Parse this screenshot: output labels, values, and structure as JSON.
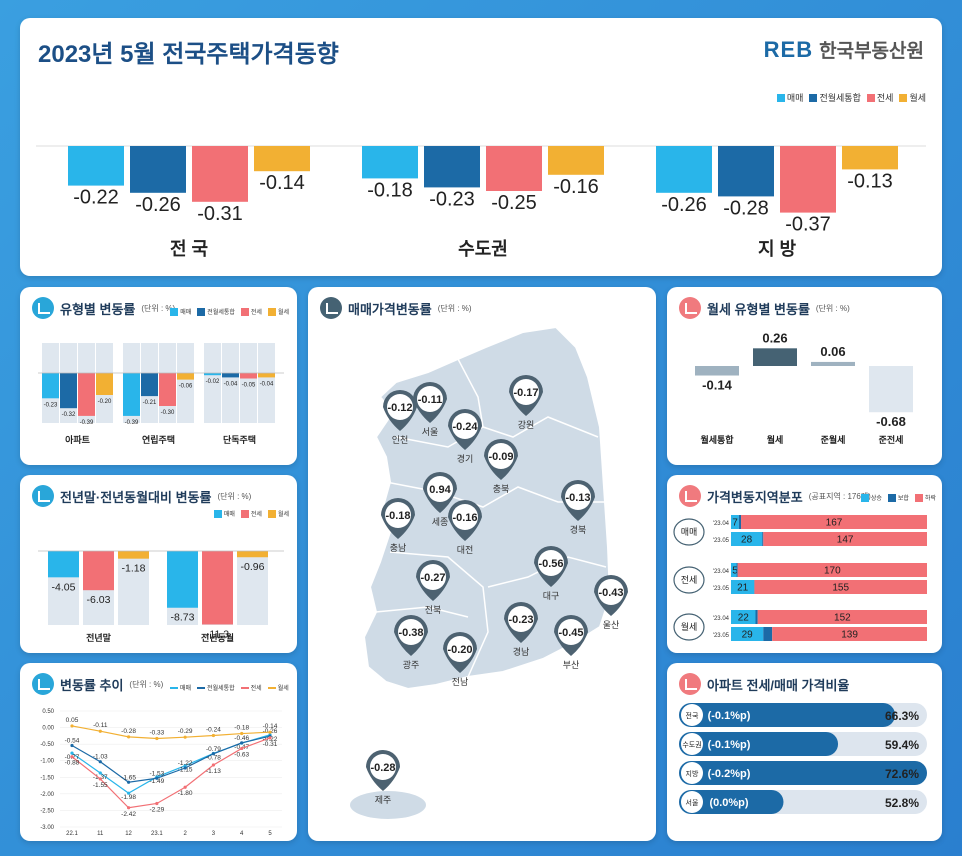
{
  "colors": {
    "sale": "#29b5ea",
    "combined": "#1c6aa6",
    "jeonse": "#f27075",
    "wolse": "#f2b033",
    "navy": "#1f3b5a",
    "gray": "#dfe7ef",
    "mapfill": "#cfdbe6",
    "pin": "#4d6271"
  },
  "header": {
    "title": "2023년 5월 전국주택가격동향",
    "brand_logo": "REB",
    "brand_name": "한국부동산원"
  },
  "legend4": [
    "매매",
    "전월세통합",
    "전세",
    "월세"
  ],
  "legend3": [
    "매매",
    "전세",
    "월세"
  ],
  "top": {
    "groups": [
      {
        "name": "전 국",
        "values": [
          -0.22,
          -0.26,
          -0.31,
          -0.14
        ],
        "labels": [
          "-0.22",
          "-0.26",
          "-0.31",
          "-0.14"
        ]
      },
      {
        "name": "수도권",
        "values": [
          -0.18,
          -0.23,
          -0.25,
          -0.16
        ],
        "labels": [
          "-0.18",
          "-0.23",
          "-0.25",
          "-0.16"
        ]
      },
      {
        "name": "지 방",
        "values": [
          -0.26,
          -0.28,
          -0.37,
          -0.13
        ],
        "labels": [
          "-0.26",
          "-0.28",
          "-0.37",
          "-0.13"
        ]
      }
    ]
  },
  "type_card": {
    "title": "유형별 변동률",
    "unit": "(단위 : %)",
    "groups": [
      {
        "name": "아파트",
        "values": [
          -0.23,
          -0.32,
          -0.39,
          -0.2
        ],
        "labels": [
          "-0.23",
          "-0.32",
          "-0.39",
          "-0.20"
        ]
      },
      {
        "name": "연립주택",
        "values": [
          -0.39,
          -0.21,
          -0.3,
          -0.06
        ],
        "labels": [
          "-0.39",
          "-0.21",
          "-0.30",
          "-0.06"
        ]
      },
      {
        "name": "단독주택",
        "values": [
          -0.02,
          -0.04,
          -0.05,
          -0.04
        ],
        "labels": [
          "-0.02",
          "-0.04",
          "-0.05",
          "-0.04"
        ]
      }
    ]
  },
  "yoy_card": {
    "title": "전년말·전년동월대비 변동률",
    "unit": "(단위 : %)",
    "groups": [
      {
        "name": "전년말",
        "values": [
          -4.05,
          -6.03,
          -1.18
        ],
        "labels": [
          "-4.05",
          "-6.03",
          "-1.18"
        ]
      },
      {
        "name": "전년동월",
        "values": [
          -8.73,
          -11.3,
          -0.96
        ],
        "labels": [
          "-8.73",
          "-11.3",
          "-0.96"
        ]
      }
    ]
  },
  "trend_card": {
    "title": "변동률 추이",
    "unit": "(단위 : %)",
    "x": [
      "22.1",
      "11",
      "12",
      "23.1",
      "2",
      "3",
      "4",
      "5"
    ],
    "yticks": [
      "0.50",
      "0.00",
      "-0.50",
      "-1.00",
      "-1.50",
      "-2.00",
      "-2.50",
      "-3.00"
    ],
    "ylim": [
      -3,
      0.5
    ],
    "series": [
      {
        "name": "매매",
        "values": [
          -0.77,
          -1.37,
          -1.98,
          -1.49,
          -1.15,
          -0.78,
          -0.47,
          -0.22
        ],
        "labels": [
          "-0.77",
          "-1.37",
          "-1.98",
          "-1.49",
          "-1.15",
          "-0.78",
          "-0.47",
          "-0.22"
        ]
      },
      {
        "name": "전월세통합",
        "values": [
          -0.54,
          -1.03,
          -1.65,
          -1.53,
          -1.22,
          -0.79,
          -0.46,
          -0.26
        ],
        "labels": [
          "-0.54",
          "-1.03",
          "-1.65",
          "-1.53",
          "-1.22",
          "-0.79",
          "-0.46",
          "-0.26"
        ]
      },
      {
        "name": "전세",
        "values": [
          -0.88,
          -1.55,
          -2.42,
          -2.29,
          -1.8,
          -1.13,
          -0.63,
          -0.31
        ],
        "labels": [
          "-0.88",
          "-1.55",
          "-2.42",
          "-2.29",
          "-1.80",
          "-1.13",
          "-0.63",
          "-0.31"
        ]
      },
      {
        "name": "월세",
        "values": [
          0.05,
          -0.11,
          -0.28,
          -0.33,
          -0.29,
          -0.24,
          -0.18,
          -0.14
        ],
        "labels": [
          "0.05",
          "-0.11",
          "-0.28",
          "-0.33",
          "-0.29",
          "-0.24",
          "-0.18",
          "-0.14"
        ]
      }
    ]
  },
  "map_card": {
    "title": "매매가격변동률",
    "unit": "(단위 : %)",
    "regions": [
      {
        "name": "인천",
        "value": "-0.12"
      },
      {
        "name": "서울",
        "value": "-0.11"
      },
      {
        "name": "경기",
        "value": "-0.24"
      },
      {
        "name": "강원",
        "value": "-0.17"
      },
      {
        "name": "충북",
        "value": "-0.09"
      },
      {
        "name": "세종",
        "value": "0.94"
      },
      {
        "name": "충남",
        "value": "-0.18"
      },
      {
        "name": "대전",
        "value": "-0.16"
      },
      {
        "name": "경북",
        "value": "-0.13"
      },
      {
        "name": "대구",
        "value": "-0.56"
      },
      {
        "name": "울산",
        "value": "-0.43"
      },
      {
        "name": "전북",
        "value": "-0.27"
      },
      {
        "name": "경남",
        "value": "-0.23"
      },
      {
        "name": "부산",
        "value": "-0.45"
      },
      {
        "name": "광주",
        "value": "-0.38"
      },
      {
        "name": "전남",
        "value": "-0.20"
      },
      {
        "name": "제주",
        "value": "-0.28"
      }
    ]
  },
  "wolse_card": {
    "title": "월세 유형별 변동률",
    "unit": "(단위 : %)",
    "categories": [
      "월세통합",
      "월세",
      "준월세",
      "준전세"
    ],
    "values": [
      -0.14,
      0.26,
      0.06,
      -0.68
    ],
    "labels": [
      "-0.14",
      "0.26",
      "0.06",
      "-0.68"
    ]
  },
  "dist_card": {
    "title": "가격변동지역분포",
    "subtitle": "(공표지역 : 176개)",
    "legend": [
      "상승",
      "보합",
      "하락"
    ],
    "groups": [
      {
        "name": "매매",
        "rows": [
          {
            "period": "'23.04",
            "up": 7,
            "flat": 2,
            "down": 167,
            "labels": [
              "7",
              "2",
              "167"
            ]
          },
          {
            "period": "'23.05",
            "up": 28,
            "flat": 1,
            "down": 147,
            "labels": [
              "28",
              "1",
              "147"
            ]
          }
        ]
      },
      {
        "name": "전세",
        "rows": [
          {
            "period": "'23.04",
            "up": 5,
            "flat": 1,
            "down": 170,
            "labels": [
              "5",
              "1",
              "170"
            ]
          },
          {
            "period": "'23.05",
            "up": 21,
            "flat": 0,
            "down": 155,
            "labels": [
              "21",
              "0",
              "155"
            ]
          }
        ]
      },
      {
        "name": "월세",
        "rows": [
          {
            "period": "'23.04",
            "up": 22,
            "flat": 2,
            "down": 152,
            "labels": [
              "22",
              "2",
              "152"
            ]
          },
          {
            "period": "'23.05",
            "up": 29,
            "flat": 8,
            "down": 139,
            "labels": [
              "29",
              "8",
              "139"
            ]
          }
        ]
      }
    ]
  },
  "ratio_card": {
    "title": "아파트 전세/매매 가격비율",
    "rows": [
      {
        "name": "전국",
        "change": "(-0.1%p)",
        "value": 66.3,
        "label": "66.3%"
      },
      {
        "name": "수도권",
        "change": "(-0.1%p)",
        "value": 59.4,
        "label": "59.4%"
      },
      {
        "name": "지방",
        "change": "(-0.2%p)",
        "value": 72.6,
        "label": "72.6%"
      },
      {
        "name": "서울",
        "change": "(0.0%p)",
        "value": 52.8,
        "label": "52.8%"
      }
    ]
  },
  "chart_data": [
    {
      "type": "bar",
      "title": "2023년 5월 전국주택가격동향",
      "categories": [
        "전 국",
        "수도권",
        "지 방"
      ],
      "series": [
        {
          "name": "매매",
          "values": [
            -0.22,
            -0.18,
            -0.26
          ]
        },
        {
          "name": "전월세통합",
          "values": [
            -0.26,
            -0.23,
            -0.28
          ]
        },
        {
          "name": "전세",
          "values": [
            -0.31,
            -0.25,
            -0.37
          ]
        },
        {
          "name": "월세",
          "values": [
            -0.14,
            -0.16,
            -0.13
          ]
        }
      ]
    },
    {
      "type": "bar",
      "title": "유형별 변동률",
      "categories": [
        "아파트",
        "연립주택",
        "단독주택"
      ],
      "series": [
        {
          "name": "매매",
          "values": [
            -0.23,
            -0.39,
            -0.02
          ]
        },
        {
          "name": "전월세통합",
          "values": [
            -0.32,
            -0.21,
            -0.04
          ]
        },
        {
          "name": "전세",
          "values": [
            -0.39,
            -0.3,
            -0.05
          ]
        },
        {
          "name": "월세",
          "values": [
            -0.2,
            -0.06,
            -0.04
          ]
        }
      ]
    },
    {
      "type": "bar",
      "title": "전년말·전년동월대비 변동률",
      "categories": [
        "전년말",
        "전년동월"
      ],
      "series": [
        {
          "name": "매매",
          "values": [
            -4.05,
            -8.73
          ]
        },
        {
          "name": "전세",
          "values": [
            -6.03,
            -11.3
          ]
        },
        {
          "name": "월세",
          "values": [
            -1.18,
            -0.96
          ]
        }
      ]
    },
    {
      "type": "line",
      "title": "변동률 추이",
      "x": [
        "22.1",
        "11",
        "12",
        "23.1",
        "2",
        "3",
        "4",
        "5"
      ],
      "ylim": [
        -3,
        0.5
      ],
      "series": [
        {
          "name": "매매",
          "values": [
            -0.77,
            -1.37,
            -1.98,
            -1.49,
            -1.15,
            -0.78,
            -0.47,
            -0.22
          ]
        },
        {
          "name": "전월세통합",
          "values": [
            -0.54,
            -1.03,
            -1.65,
            -1.53,
            -1.22,
            -0.79,
            -0.46,
            -0.26
          ]
        },
        {
          "name": "전세",
          "values": [
            -0.88,
            -1.55,
            -2.42,
            -2.29,
            -1.8,
            -1.13,
            -0.63,
            -0.31
          ]
        },
        {
          "name": "월세",
          "values": [
            0.05,
            -0.11,
            -0.28,
            -0.33,
            -0.29,
            -0.24,
            -0.18,
            -0.14
          ]
        }
      ]
    },
    {
      "type": "bar",
      "title": "월세 유형별 변동률",
      "categories": [
        "월세통합",
        "월세",
        "준월세",
        "준전세"
      ],
      "values": [
        -0.14,
        0.26,
        0.06,
        -0.68
      ]
    },
    {
      "type": "bar",
      "title": "가격변동지역분포",
      "categories": [
        "매매 '23.04",
        "매매 '23.05",
        "전세 '23.04",
        "전세 '23.05",
        "월세 '23.04",
        "월세 '23.05"
      ],
      "series": [
        {
          "name": "상승",
          "values": [
            7,
            28,
            5,
            21,
            22,
            29
          ]
        },
        {
          "name": "보합",
          "values": [
            2,
            1,
            1,
            0,
            2,
            8
          ]
        },
        {
          "name": "하락",
          "values": [
            167,
            147,
            170,
            155,
            152,
            139
          ]
        }
      ]
    },
    {
      "type": "bar",
      "title": "아파트 전세/매매 가격비율",
      "categories": [
        "전국",
        "수도권",
        "지방",
        "서울"
      ],
      "values": [
        66.3,
        59.4,
        72.6,
        52.8
      ]
    }
  ]
}
